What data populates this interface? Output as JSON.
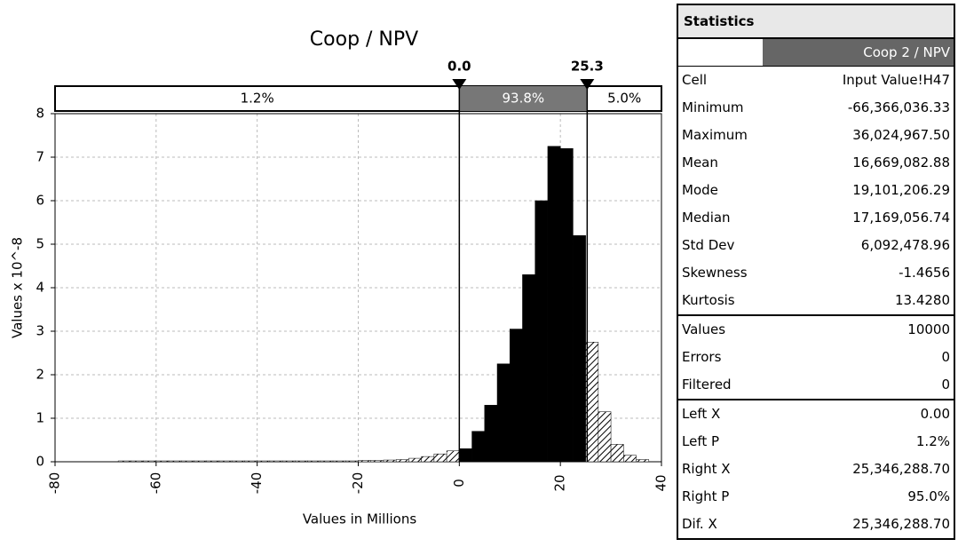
{
  "chart_data": {
    "type": "histogram",
    "title": "Coop / NPV",
    "x_label": "Values in Millions",
    "y_label": "Values x 10^-8",
    "bins": [
      -67.5,
      -65,
      -62.5,
      -60,
      -57.5,
      -55,
      -52.5,
      -50,
      -47.5,
      -45,
      -42.5,
      -40,
      -37.5,
      -35,
      -32.5,
      -30,
      -27.5,
      -25,
      -22.5,
      -20,
      -17.5,
      -15,
      -12.5,
      -10,
      -7.5,
      -5,
      -2.5,
      0,
      2.5,
      5,
      7.5,
      10,
      12.5,
      15,
      17.5,
      20,
      22.5,
      25,
      27.5,
      30,
      32.5,
      35,
      37.5
    ],
    "values": [
      0.02,
      0.02,
      0.02,
      0.02,
      0.02,
      0.02,
      0.02,
      0.02,
      0.02,
      0.02,
      0.02,
      0.02,
      0.02,
      0.02,
      0.02,
      0.02,
      0.02,
      0.02,
      0.02,
      0.03,
      0.03,
      0.04,
      0.05,
      0.08,
      0.12,
      0.18,
      0.25,
      0.3,
      0.7,
      1.3,
      2.25,
      3.05,
      4.3,
      6.0,
      7.25,
      7.2,
      5.2,
      2.75,
      1.15,
      0.4,
      0.15,
      0.05
    ],
    "color": "#000000",
    "xlim": [
      -80,
      40
    ],
    "xticks": [
      -80,
      -60,
      -40,
      -20,
      0,
      20,
      40
    ],
    "ylim": [
      0,
      8
    ],
    "yticks": [
      0,
      1,
      2,
      3,
      4,
      5,
      6,
      7,
      8
    ],
    "grid": true,
    "delimiters": [
      {
        "value": 0,
        "label": "0.0"
      },
      {
        "value": 25.3,
        "label": "25.3"
      }
    ],
    "regions": [
      {
        "value": 1.2,
        "label": "1.2%"
      },
      {
        "value": 93.8,
        "label": "93.8%"
      },
      {
        "value": 5.0,
        "label": "5.0%"
      }
    ]
  },
  "statistics": {
    "title": "Statistics",
    "column": "Coop 2 / NPV",
    "groups": [
      [
        [
          "Cell",
          "Input Value!H47"
        ],
        [
          "Minimum",
          "-66,366,036.33"
        ],
        [
          "Maximum",
          "36,024,967.50"
        ],
        [
          "Mean",
          "16,669,082.88"
        ],
        [
          "Mode",
          "19,101,206.29"
        ],
        [
          "Median",
          "17,169,056.74"
        ],
        [
          "Std Dev",
          "6,092,478.96"
        ],
        [
          "Skewness",
          "-1.4656"
        ],
        [
          "Kurtosis",
          "13.4280"
        ]
      ],
      [
        [
          "Values",
          "10000"
        ],
        [
          "Errors",
          "0"
        ],
        [
          "Filtered",
          "0"
        ]
      ],
      [
        [
          "Left X",
          "0.00"
        ],
        [
          "Left P",
          "1.2%"
        ],
        [
          "Right X",
          "25,346,288.70"
        ],
        [
          "Right P",
          "95.0%"
        ],
        [
          "Dif. X",
          "25,346,288.70"
        ]
      ]
    ]
  }
}
